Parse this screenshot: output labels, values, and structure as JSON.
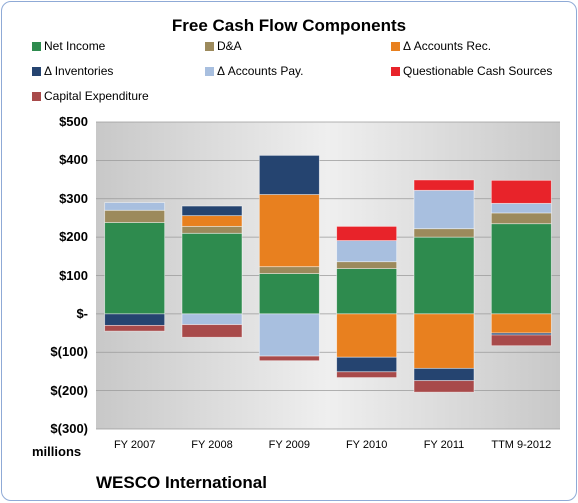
{
  "chart_data": {
    "type": "bar",
    "stacked": true,
    "title": "Free Cash Flow Components",
    "unit_label": "millions",
    "company": "WESCO International",
    "categories": [
      "FY 2007",
      "FY 2008",
      "FY 2009",
      "FY 2010",
      "FY 2011",
      "TTM 9-2012"
    ],
    "ylim": [
      -300,
      500
    ],
    "yticks": [
      {
        "value": 500,
        "label": "$500"
      },
      {
        "value": 400,
        "label": "$400"
      },
      {
        "value": 300,
        "label": "$300"
      },
      {
        "value": 200,
        "label": "$200"
      },
      {
        "value": 100,
        "label": "$100"
      },
      {
        "value": 0,
        "label": "$-"
      },
      {
        "value": -100,
        "label": "$(100)"
      },
      {
        "value": -200,
        "label": "$(200)"
      },
      {
        "value": -300,
        "label": "$(300)"
      }
    ],
    "grid": true,
    "legend_position": "top",
    "series": [
      {
        "name": "Net Income",
        "color": "#2e8b4e",
        "values": [
          238,
          210,
          105,
          118,
          200,
          235
        ]
      },
      {
        "name": "D&A",
        "color": "#9c8a5c",
        "values": [
          32,
          18,
          18,
          18,
          22,
          28
        ]
      },
      {
        "name": "Δ Accounts Rec.",
        "color": "#e8801f",
        "values": [
          0,
          28,
          188,
          -113,
          -142,
          -50
        ]
      },
      {
        "name": "Δ Inventories",
        "color": "#254470",
        "values": [
          -30,
          25,
          102,
          -38,
          -32,
          -5
        ]
      },
      {
        "name": "Δ Accounts Pay.",
        "color": "#a8bfdf",
        "values": [
          20,
          -28,
          -110,
          55,
          100,
          25
        ]
      },
      {
        "name": "Questionable Cash Sources",
        "color": "#e8232a",
        "values": [
          0,
          0,
          0,
          37,
          27,
          60
        ]
      },
      {
        "name": "Capital Expenditure",
        "color": "#a84a4a",
        "values": [
          -15,
          -33,
          -12,
          -15,
          -30,
          -28
        ]
      }
    ]
  }
}
